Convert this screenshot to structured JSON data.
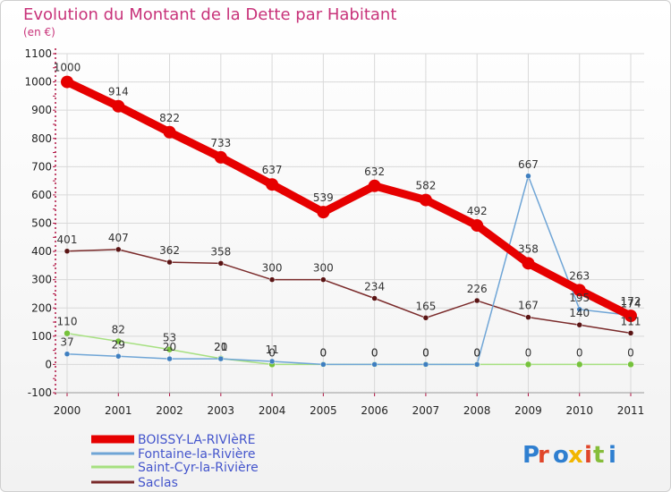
{
  "title": "Evolution du Montant de la Dette par Habitant",
  "unit": "(en €)",
  "logo": [
    "P",
    "r",
    "o",
    "x",
    "i",
    "t",
    "i"
  ],
  "colors": {
    "title": "#c8337a",
    "grid": "#d9d9d9",
    "axis": "#b01040",
    "logo": [
      "#2f7fd0",
      "#e0462a",
      "#2f7fd0",
      "#f2b600",
      "#e0462a",
      "#86bd3a",
      "#2f7fd0"
    ]
  },
  "chart_data": {
    "type": "line",
    "x": [
      "2000",
      "2001",
      "2002",
      "2003",
      "2004",
      "2005",
      "2006",
      "2007",
      "2008",
      "2009",
      "2010",
      "2011"
    ],
    "ylim": [
      -100,
      1100
    ],
    "yticks": [
      -100,
      0,
      100,
      200,
      300,
      400,
      500,
      600,
      700,
      800,
      900,
      1000,
      1100
    ],
    "grid": true,
    "legend": "bottom-left",
    "series": [
      {
        "name": "BOISSY-LA-RIVIèRE",
        "color": "#e60000",
        "width": 9,
        "marker": 7,
        "markerFill": "#e60000",
        "values": [
          1000,
          914,
          822,
          733,
          637,
          539,
          632,
          582,
          492,
          358,
          263,
          172
        ],
        "labels": [
          "1000",
          "914",
          "822",
          "733",
          "637",
          "539",
          "632",
          "582",
          "492",
          "358",
          "263",
          "172"
        ]
      },
      {
        "name": "Fontaine-la-Rivière",
        "color": "#6fa5d6",
        "width": 1.5,
        "marker": 3,
        "markerFill": "#3f7fc0",
        "values": [
          37,
          29,
          20,
          20,
          11,
          0,
          0,
          0,
          0,
          667,
          195,
          174
        ],
        "labels": [
          "37",
          "29",
          "20",
          "20",
          "11",
          "0",
          "0",
          "0",
          "0",
          "667",
          "195",
          "174"
        ]
      },
      {
        "name": "Saint-Cyr-la-Rivière",
        "color": "#a6e080",
        "width": 1.5,
        "marker": 3.5,
        "markerFill": "#76c23c",
        "values": [
          110,
          82,
          53,
          21,
          0,
          0,
          0,
          0,
          0,
          0,
          0,
          0
        ],
        "labels": [
          "110",
          "82",
          "53",
          "21",
          "0",
          "0",
          "0",
          "0",
          "0",
          "0",
          "0",
          "0"
        ]
      },
      {
        "name": "Saclas",
        "color": "#7a2a2a",
        "width": 1.5,
        "marker": 3,
        "markerFill": "#5a1414",
        "values": [
          401,
          407,
          362,
          358,
          300,
          300,
          234,
          165,
          226,
          167,
          140,
          111
        ],
        "labels": [
          "401",
          "407",
          "362",
          "358",
          "300",
          "300",
          "234",
          "165",
          "226",
          "167",
          "140",
          "111"
        ]
      }
    ]
  }
}
